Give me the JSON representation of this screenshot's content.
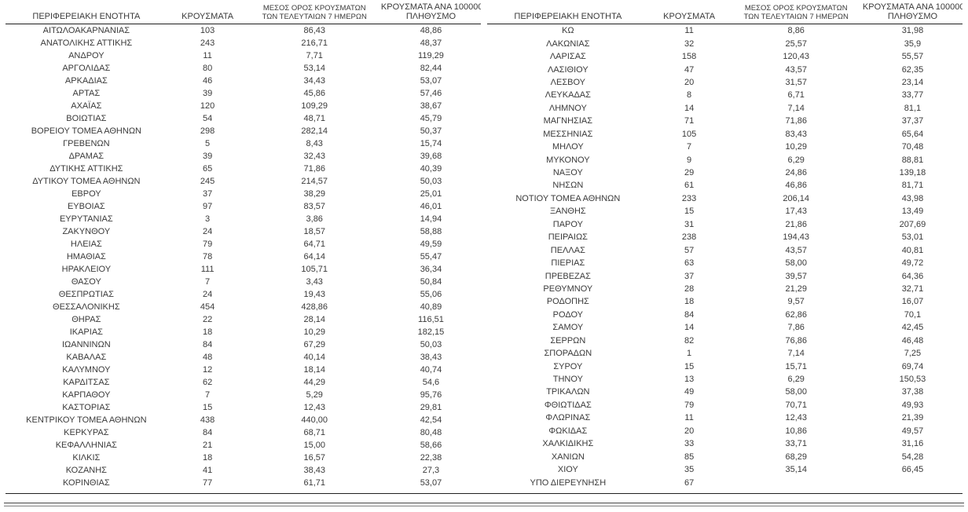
{
  "table": {
    "headers": {
      "region": "ΠΕΡΙΦΕΡΕΙΑΚΗ ΕΝΟΤΗΤΑ",
      "cases": "ΚΡΟΥΣΜΑΤΑ",
      "avg7_line1": "ΜΕΣΟΣ ΟΡΟΣ ΚΡΟΥΣΜΑΤΩΝ",
      "avg7_line2": "ΤΩΝ ΤΕΛΕΥΤΑΙΩΝ 7 ΗΜΕΡΩΝ",
      "per100k_line1": "ΚΡΟΥΣΜΑΤΑ ΑΝΑ 100000",
      "per100k_line2": "ΠΛΗΘΥΣΜΟ"
    },
    "left_rows": [
      [
        "ΑΙΤΩΛΟΑΚΑΡΝΑΝΙΑΣ",
        "103",
        "86,43",
        "48,86"
      ],
      [
        "ΑΝΑΤΟΛΙΚΗΣ ΑΤΤΙΚΗΣ",
        "243",
        "216,71",
        "48,37"
      ],
      [
        "ΑΝΔΡΟΥ",
        "11",
        "7,71",
        "119,29"
      ],
      [
        "ΑΡΓΟΛΙΔΑΣ",
        "80",
        "53,14",
        "82,44"
      ],
      [
        "ΑΡΚΑΔΙΑΣ",
        "46",
        "34,43",
        "53,07"
      ],
      [
        "ΑΡΤΑΣ",
        "39",
        "45,86",
        "57,46"
      ],
      [
        "ΑΧΑΪΑΣ",
        "120",
        "109,29",
        "38,67"
      ],
      [
        "ΒΟΙΩΤΙΑΣ",
        "54",
        "48,71",
        "45,79"
      ],
      [
        "ΒΟΡΕΙΟΥ ΤΟΜΕΑ ΑΘΗΝΩΝ",
        "298",
        "282,14",
        "50,37"
      ],
      [
        "ΓΡΕΒΕΝΩΝ",
        "5",
        "8,43",
        "15,74"
      ],
      [
        "ΔΡΑΜΑΣ",
        "39",
        "32,43",
        "39,68"
      ],
      [
        "ΔΥΤΙΚΗΣ ΑΤΤΙΚΗΣ",
        "65",
        "71,86",
        "40,39"
      ],
      [
        "ΔΥΤΙΚΟΥ ΤΟΜΕΑ ΑΘΗΝΩΝ",
        "245",
        "214,57",
        "50,03"
      ],
      [
        "ΕΒΡΟΥ",
        "37",
        "38,29",
        "25,01"
      ],
      [
        "ΕΥΒΟΙΑΣ",
        "97",
        "83,57",
        "46,01"
      ],
      [
        "ΕΥΡΥΤΑΝΙΑΣ",
        "3",
        "3,86",
        "14,94"
      ],
      [
        "ΖΑΚΥΝΘΟΥ",
        "24",
        "18,57",
        "58,88"
      ],
      [
        "ΗΛΕΙΑΣ",
        "79",
        "64,71",
        "49,59"
      ],
      [
        "ΗΜΑΘΙΑΣ",
        "78",
        "64,14",
        "55,47"
      ],
      [
        "ΗΡΑΚΛΕΙΟΥ",
        "111",
        "105,71",
        "36,34"
      ],
      [
        "ΘΑΣΟΥ",
        "7",
        "3,43",
        "50,84"
      ],
      [
        "ΘΕΣΠΡΩΤΙΑΣ",
        "24",
        "19,43",
        "55,06"
      ],
      [
        "ΘΕΣΣΑΛΟΝΙΚΗΣ",
        "454",
        "428,86",
        "40,89"
      ],
      [
        "ΘΗΡΑΣ",
        "22",
        "28,14",
        "116,51"
      ],
      [
        "ΙΚΑΡΙΑΣ",
        "18",
        "10,29",
        "182,15"
      ],
      [
        "ΙΩΑΝΝΙΝΩΝ",
        "84",
        "67,29",
        "50,03"
      ],
      [
        "ΚΑΒΑΛΑΣ",
        "48",
        "40,14",
        "38,43"
      ],
      [
        "ΚΑΛΥΜΝΟΥ",
        "12",
        "18,14",
        "40,74"
      ],
      [
        "ΚΑΡΔΙΤΣΑΣ",
        "62",
        "44,29",
        "54,6"
      ],
      [
        "ΚΑΡΠΑΘΟΥ",
        "7",
        "5,29",
        "95,76"
      ],
      [
        "ΚΑΣΤΟΡΙΑΣ",
        "15",
        "12,43",
        "29,81"
      ],
      [
        "ΚΕΝΤΡΙΚΟΥ ΤΟΜΕΑ ΑΘΗΝΩΝ",
        "438",
        "440,00",
        "42,54"
      ],
      [
        "ΚΕΡΚΥΡΑΣ",
        "84",
        "68,71",
        "80,48"
      ],
      [
        "ΚΕΦΑΛΛΗΝΙΑΣ",
        "21",
        "15,00",
        "58,66"
      ],
      [
        "ΚΙΛΚΙΣ",
        "18",
        "16,57",
        "22,38"
      ],
      [
        "ΚΟΖΑΝΗΣ",
        "41",
        "38,43",
        "27,3"
      ],
      [
        "ΚΟΡΙΝΘΙΑΣ",
        "77",
        "61,71",
        "53,07"
      ]
    ],
    "right_rows": [
      [
        "ΚΩ",
        "11",
        "8,86",
        "31,98"
      ],
      [
        "ΛΑΚΩΝΙΑΣ",
        "32",
        "25,57",
        "35,9"
      ],
      [
        "ΛΑΡΙΣΑΣ",
        "158",
        "120,43",
        "55,57"
      ],
      [
        "ΛΑΣΙΘΙΟΥ",
        "47",
        "43,57",
        "62,35"
      ],
      [
        "ΛΕΣΒΟΥ",
        "20",
        "31,57",
        "23,14"
      ],
      [
        "ΛΕΥΚΑΔΑΣ",
        "8",
        "6,71",
        "33,77"
      ],
      [
        "ΛΗΜΝΟΥ",
        "14",
        "7,14",
        "81,1"
      ],
      [
        "ΜΑΓΝΗΣΙΑΣ",
        "71",
        "71,86",
        "37,37"
      ],
      [
        "ΜΕΣΣΗΝΙΑΣ",
        "105",
        "83,43",
        "65,64"
      ],
      [
        "ΜΗΛΟΥ",
        "7",
        "10,29",
        "70,48"
      ],
      [
        "ΜΥΚΟΝΟΥ",
        "9",
        "6,29",
        "88,81"
      ],
      [
        "ΝΑΞΟΥ",
        "29",
        "24,86",
        "139,18"
      ],
      [
        "ΝΗΣΩΝ",
        "61",
        "46,86",
        "81,71"
      ],
      [
        "ΝΟΤΙΟΥ ΤΟΜΕΑ ΑΘΗΝΩΝ",
        "233",
        "206,14",
        "43,98"
      ],
      [
        "ΞΑΝΘΗΣ",
        "15",
        "17,43",
        "13,49"
      ],
      [
        "ΠΑΡΟΥ",
        "31",
        "21,86",
        "207,69"
      ],
      [
        "ΠΕΙΡΑΙΩΣ",
        "238",
        "194,43",
        "53,01"
      ],
      [
        "ΠΕΛΛΑΣ",
        "57",
        "43,57",
        "40,81"
      ],
      [
        "ΠΙΕΡΙΑΣ",
        "63",
        "58,00",
        "49,72"
      ],
      [
        "ΠΡΕΒΕΖΑΣ",
        "37",
        "39,57",
        "64,36"
      ],
      [
        "ΡΕΘΥΜΝΟΥ",
        "28",
        "21,29",
        "32,71"
      ],
      [
        "ΡΟΔΟΠΗΣ",
        "18",
        "9,57",
        "16,07"
      ],
      [
        "ΡΟΔΟΥ",
        "84",
        "62,86",
        "70,1"
      ],
      [
        "ΣΑΜΟΥ",
        "14",
        "7,86",
        "42,45"
      ],
      [
        "ΣΕΡΡΩΝ",
        "82",
        "76,86",
        "46,48"
      ],
      [
        "ΣΠΟΡΑΔΩΝ",
        "1",
        "7,14",
        "7,25"
      ],
      [
        "ΣΥΡΟΥ",
        "15",
        "15,71",
        "69,74"
      ],
      [
        "ΤΗΝΟΥ",
        "13",
        "6,29",
        "150,53"
      ],
      [
        "ΤΡΙΚΑΛΩΝ",
        "49",
        "58,00",
        "37,38"
      ],
      [
        "ΦΘΙΩΤΙΔΑΣ",
        "79",
        "70,71",
        "49,93"
      ],
      [
        "ΦΛΩΡΙΝΑΣ",
        "11",
        "12,43",
        "21,39"
      ],
      [
        "ΦΩΚΙΔΑΣ",
        "20",
        "10,86",
        "49,57"
      ],
      [
        "ΧΑΛΚΙΔΙΚΗΣ",
        "33",
        "33,71",
        "31,16"
      ],
      [
        "ΧΑΝΙΩΝ",
        "85",
        "68,29",
        "54,28"
      ],
      [
        "ΧΙΟΥ",
        "35",
        "35,14",
        "66,45"
      ],
      [
        "ΥΠΟ ΔΙΕΡΕΥΝΗΣΗ",
        "67",
        "",
        ""
      ]
    ]
  },
  "colors": {
    "text": "#3a3a3a",
    "rule": "#1f1f1f",
    "double_rule_dark": "#4f4f4f",
    "double_rule_light": "#8a8a8a"
  }
}
